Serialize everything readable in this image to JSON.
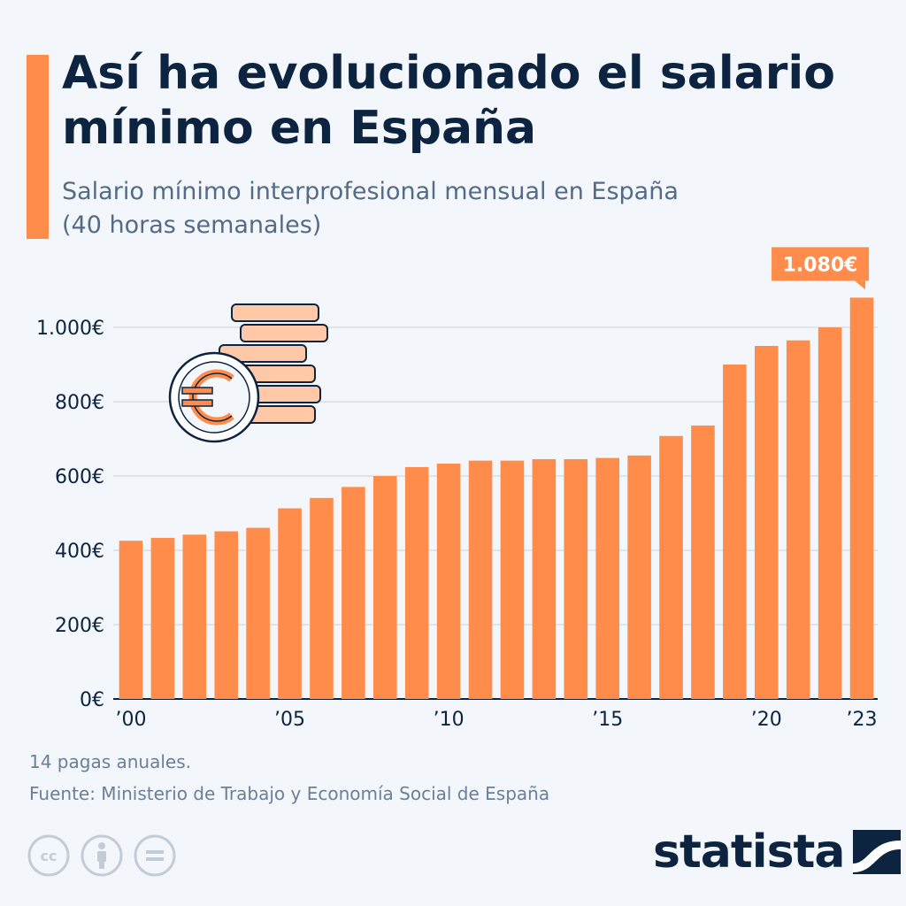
{
  "header": {
    "title": "Así ha evolucionado el salario mínimo en España",
    "subtitle": "Salario mínimo interprofesional mensual en España (40 horas semanales)"
  },
  "footer": {
    "note": "14 pagas anuales.",
    "source": "Fuente: Ministerio de Trabajo y Economía Social de España",
    "brand": "statista",
    "license_icons": [
      "cc-icon",
      "attribution-icon",
      "no-derivatives-icon"
    ]
  },
  "colors": {
    "bar": "#ff8c4a",
    "title": "#0d2441",
    "subtitle": "#546b86",
    "grid": "#c9d2dc",
    "background": "#f3f6fa"
  },
  "chart_data": {
    "type": "bar",
    "title": "Así ha evolucionado el salario mínimo en España",
    "subtitle": "Salario mínimo interprofesional mensual en España (40 horas semanales)",
    "categories": [
      "2000",
      "2001",
      "2002",
      "2003",
      "2004",
      "2005",
      "2006",
      "2007",
      "2008",
      "2009",
      "2010",
      "2011",
      "2012",
      "2013",
      "2014",
      "2015",
      "2016",
      "2017",
      "2018",
      "2019",
      "2020",
      "2021",
      "2022",
      "2023"
    ],
    "values": [
      425.85,
      433.45,
      442.2,
      451.2,
      460.5,
      513,
      540.9,
      570.6,
      600,
      624,
      633.3,
      641.4,
      641.4,
      645.3,
      645.3,
      648.6,
      655.2,
      707.7,
      735.9,
      900,
      950,
      965,
      1000,
      1080
    ],
    "x_tick_labels": [
      {
        "index": 0,
        "label": "’00"
      },
      {
        "index": 5,
        "label": "’05"
      },
      {
        "index": 10,
        "label": "’10"
      },
      {
        "index": 15,
        "label": "’15"
      },
      {
        "index": 20,
        "label": "’20"
      },
      {
        "index": 23,
        "label": "’23"
      }
    ],
    "y_ticks": [
      0,
      200,
      400,
      600,
      800,
      1000
    ],
    "y_tick_labels": [
      "0€",
      "200€",
      "400€",
      "600€",
      "800€",
      "1.000€"
    ],
    "ylim": [
      0,
      1100
    ],
    "grid": true,
    "annotation": {
      "index": 23,
      "text": "1.080€"
    },
    "xlabel": "",
    "ylabel": ""
  }
}
